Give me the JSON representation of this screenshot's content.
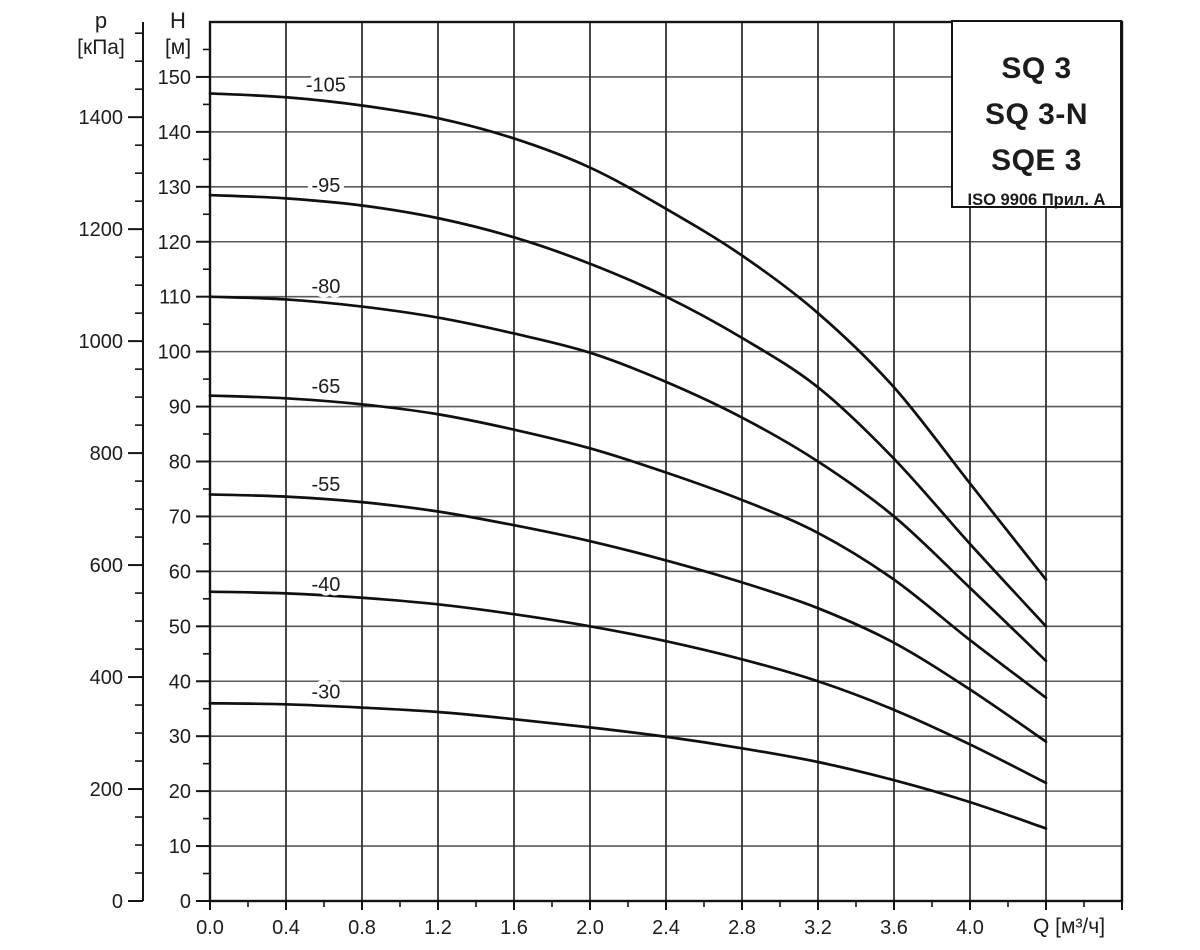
{
  "page": {
    "background": "#ffffff"
  },
  "legend": {
    "models": [
      "SQ 3",
      "SQ 3-N",
      "SQE 3"
    ],
    "standard": "ISO 9906 Прил. А"
  },
  "axis_titles": {
    "pressure": {
      "symbol": "p",
      "unit": "[кПа]"
    },
    "head": {
      "symbol": "H",
      "unit": "[м]"
    },
    "flow": {
      "label": "Q [м³/ч]"
    }
  },
  "colors": {
    "curve": "#101010",
    "grid_vertical": "#333333",
    "grid_horizontal": "#5a5a5a",
    "frame": "#141414",
    "text": "#1c1c1c",
    "background": "#ffffff"
  },
  "chart_data": {
    "type": "line",
    "title": "SQ 3 / SQ 3-N / SQE 3 pump performance curves",
    "xlabel": "Q [м³/ч]",
    "ylabel": "H [м]",
    "y2label": "p [кПа]",
    "xlim": [
      0,
      4.8
    ],
    "ylim": [
      0,
      160
    ],
    "y2lim": [
      0,
      1570
    ],
    "grid": true,
    "legend_position": "top-right",
    "x_major_step": 0.4,
    "x_minor_step": 0.2,
    "y_major_step": 10,
    "y_minor_step": 5,
    "y2_major_step": 200,
    "y2_minor_step": 50,
    "x_tick_labels": [
      "0.0",
      "0.4",
      "0.8",
      "1.2",
      "1.6",
      "2.0",
      "2.4",
      "2.8",
      "3.2",
      "3.6",
      "4.0"
    ],
    "y_tick_labels": [
      "0",
      "10",
      "20",
      "30",
      "40",
      "50",
      "60",
      "70",
      "80",
      "90",
      "100",
      "110",
      "120",
      "130",
      "140",
      "150"
    ],
    "y2_tick_labels": [
      "0",
      "200",
      "400",
      "600",
      "800",
      "1000",
      "1200",
      "1400"
    ],
    "series": [
      {
        "name": "-105",
        "label_q": 0.61,
        "label_h": 148.6,
        "points": [
          [
            0,
            147
          ],
          [
            0.4,
            146.3
          ],
          [
            0.8,
            144.8
          ],
          [
            1.2,
            142.5
          ],
          [
            1.6,
            138.8
          ],
          [
            2.0,
            133.5
          ],
          [
            2.4,
            126
          ],
          [
            2.8,
            117.5
          ],
          [
            3.2,
            107
          ],
          [
            3.6,
            93.5
          ],
          [
            4.0,
            76
          ],
          [
            4.4,
            58.5
          ]
        ]
      },
      {
        "name": "-95",
        "label_q": 0.61,
        "label_h": 130.3,
        "points": [
          [
            0,
            128.5
          ],
          [
            0.4,
            127.9
          ],
          [
            0.8,
            126.6
          ],
          [
            1.2,
            124.3
          ],
          [
            1.6,
            120.8
          ],
          [
            2.0,
            116
          ],
          [
            2.4,
            110
          ],
          [
            2.8,
            102.5
          ],
          [
            3.2,
            93.5
          ],
          [
            3.6,
            80.5
          ],
          [
            4.0,
            65
          ],
          [
            4.4,
            50
          ]
        ]
      },
      {
        "name": "-80",
        "label_q": 0.61,
        "label_h": 111.9,
        "points": [
          [
            0,
            110
          ],
          [
            0.4,
            109.5
          ],
          [
            0.8,
            108.2
          ],
          [
            1.2,
            106.2
          ],
          [
            1.6,
            103.3
          ],
          [
            2.0,
            99.8
          ],
          [
            2.4,
            94.5
          ],
          [
            2.8,
            88
          ],
          [
            3.2,
            80
          ],
          [
            3.6,
            70
          ],
          [
            4.0,
            57
          ],
          [
            4.4,
            43.7
          ]
        ]
      },
      {
        "name": "-65",
        "label_q": 0.61,
        "label_h": 93.7,
        "points": [
          [
            0,
            92
          ],
          [
            0.4,
            91.5
          ],
          [
            0.8,
            90.4
          ],
          [
            1.2,
            88.6
          ],
          [
            1.6,
            85.8
          ],
          [
            2.0,
            82.4
          ],
          [
            2.4,
            78
          ],
          [
            2.8,
            73
          ],
          [
            3.2,
            67
          ],
          [
            3.6,
            58.5
          ],
          [
            4.0,
            47.5
          ],
          [
            4.4,
            37
          ]
        ]
      },
      {
        "name": "-55",
        "label_q": 0.61,
        "label_h": 75.9,
        "points": [
          [
            0,
            74
          ],
          [
            0.4,
            73.6
          ],
          [
            0.8,
            72.6
          ],
          [
            1.2,
            70.9
          ],
          [
            1.6,
            68.4
          ],
          [
            2.0,
            65.5
          ],
          [
            2.4,
            62
          ],
          [
            2.8,
            58
          ],
          [
            3.2,
            53.3
          ],
          [
            3.6,
            47
          ],
          [
            4.0,
            38.5
          ],
          [
            4.4,
            29
          ]
        ]
      },
      {
        "name": "-40",
        "label_q": 0.61,
        "label_h": 57.7,
        "points": [
          [
            0,
            56.3
          ],
          [
            0.4,
            56
          ],
          [
            0.8,
            55.2
          ],
          [
            1.2,
            54
          ],
          [
            1.6,
            52.2
          ],
          [
            2.0,
            50
          ],
          [
            2.4,
            47.3
          ],
          [
            2.8,
            44
          ],
          [
            3.2,
            40
          ],
          [
            3.6,
            34.8
          ],
          [
            4.0,
            28.5
          ],
          [
            4.4,
            21.5
          ]
        ]
      },
      {
        "name": "-30",
        "label_q": 0.61,
        "label_h": 38.1,
        "points": [
          [
            0,
            36
          ],
          [
            0.4,
            35.8
          ],
          [
            0.8,
            35.2
          ],
          [
            1.2,
            34.4
          ],
          [
            1.6,
            33.1
          ],
          [
            2.0,
            31.6
          ],
          [
            2.4,
            29.9
          ],
          [
            2.8,
            27.8
          ],
          [
            3.2,
            25.3
          ],
          [
            3.6,
            22
          ],
          [
            4.0,
            18
          ],
          [
            4.4,
            13.2
          ]
        ]
      }
    ]
  }
}
